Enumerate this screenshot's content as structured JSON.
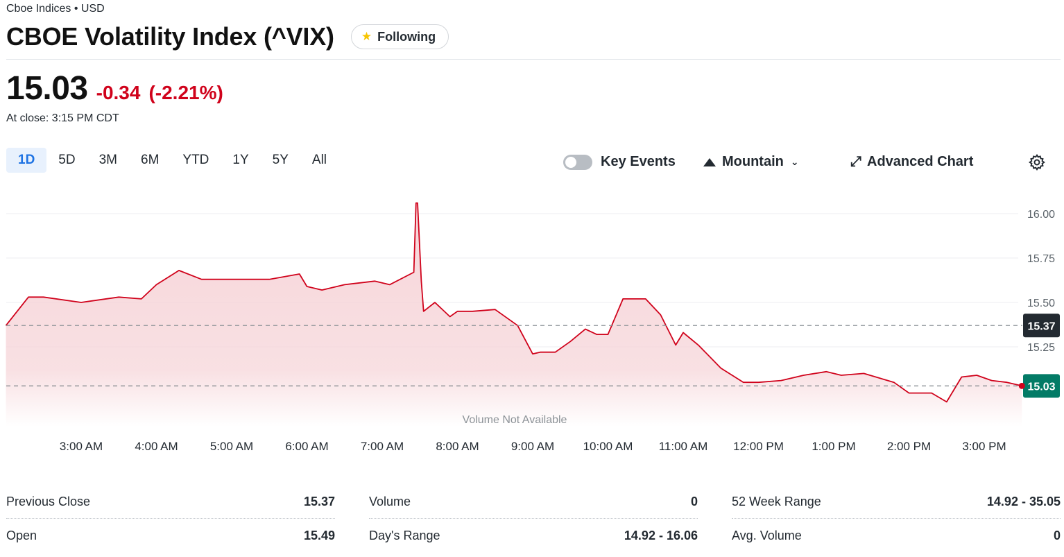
{
  "header": {
    "exchange": "Cboe Indices • USD",
    "title": "CBOE Volatility Index (^VIX)",
    "follow_label": "Following"
  },
  "quote": {
    "price": "15.03",
    "change": "-0.34",
    "change_pct": "(-2.21%)",
    "close_time": "At close: 3:15 PM CDT"
  },
  "range_tabs": [
    "1D",
    "5D",
    "3M",
    "6M",
    "YTD",
    "1Y",
    "5Y",
    "All"
  ],
  "active_range": "1D",
  "controls": {
    "key_events": "Key Events",
    "chart_type": "Mountain",
    "advanced": "Advanced Chart"
  },
  "colors": {
    "negative": "#d0021b",
    "line": "#d0021b",
    "fill": "#f6d3d7",
    "current_badge": "#037b66",
    "prev_badge": "#232a31"
  },
  "chart_data": {
    "type": "area",
    "x_ticks": [
      "3:00 AM",
      "4:00 AM",
      "5:00 AM",
      "6:00 AM",
      "7:00 AM",
      "8:00 AM",
      "9:00 AM",
      "10:00 AM",
      "11:00 AM",
      "12:00 PM",
      "1:00 PM",
      "2:00 PM",
      "3:00 PM"
    ],
    "y_ticks": [
      "16.00",
      "15.75",
      "15.50",
      "15.25"
    ],
    "ylim": [
      15.0,
      16.05
    ],
    "previous_close": 15.37,
    "previous_close_label": "15.37",
    "current": 15.03,
    "current_label": "15.03",
    "volume_note": "Volume Not Available",
    "x_hours": [
      2.0,
      2.3,
      2.5,
      3.0,
      3.5,
      3.8,
      4.0,
      4.3,
      4.6,
      5.0,
      5.5,
      5.9,
      6.0,
      6.2,
      6.5,
      6.9,
      7.1,
      7.42,
      7.45,
      7.47,
      7.52,
      7.55,
      7.7,
      7.9,
      8.0,
      8.2,
      8.5,
      8.8,
      9.0,
      9.1,
      9.3,
      9.5,
      9.7,
      9.85,
      10.0,
      10.2,
      10.5,
      10.7,
      10.9,
      11.0,
      11.2,
      11.5,
      11.8,
      12.0,
      12.3,
      12.6,
      12.9,
      13.1,
      13.4,
      13.8,
      14.0,
      14.3,
      14.5,
      14.7,
      14.9,
      15.1,
      15.3,
      15.5
    ],
    "values": [
      15.37,
      15.53,
      15.53,
      15.5,
      15.53,
      15.52,
      15.6,
      15.68,
      15.63,
      15.63,
      15.63,
      15.66,
      15.59,
      15.57,
      15.6,
      15.62,
      15.6,
      15.67,
      16.06,
      16.06,
      15.62,
      15.45,
      15.5,
      15.42,
      15.45,
      15.45,
      15.46,
      15.37,
      15.21,
      15.22,
      15.22,
      15.28,
      15.35,
      15.32,
      15.32,
      15.52,
      15.52,
      15.43,
      15.26,
      15.33,
      15.26,
      15.13,
      15.05,
      15.05,
      15.06,
      15.09,
      15.11,
      15.09,
      15.1,
      15.05,
      14.99,
      14.99,
      14.94,
      15.08,
      15.09,
      15.06,
      15.05,
      15.03
    ]
  },
  "stats": [
    [
      {
        "label": "Previous Close",
        "value": "15.37"
      },
      {
        "label": "Open",
        "value": "15.49"
      }
    ],
    [
      {
        "label": "Volume",
        "value": "0"
      },
      {
        "label": "Day's Range",
        "value": "14.92 - 16.06"
      }
    ],
    [
      {
        "label": "52 Week Range",
        "value": "14.92 - 35.05"
      },
      {
        "label": "Avg. Volume",
        "value": "0"
      }
    ]
  ]
}
